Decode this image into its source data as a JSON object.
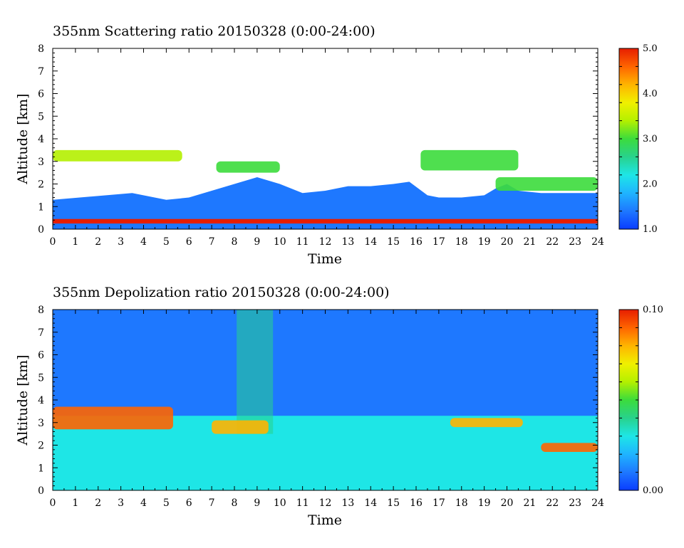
{
  "chart_data": [
    {
      "type": "heatmap",
      "title": "355nm Scattering ratio  20150328 (0:00-24:00)",
      "xlabel": "Time",
      "ylabel": "Altitude [km]",
      "xlim": [
        0,
        24
      ],
      "ylim": [
        0,
        8
      ],
      "x_ticks": [
        "0",
        "1",
        "2",
        "3",
        "4",
        "5",
        "6",
        "7",
        "8",
        "9",
        "10",
        "11",
        "12",
        "13",
        "14",
        "15",
        "16",
        "17",
        "18",
        "19",
        "20",
        "21",
        "22",
        "23",
        "24"
      ],
      "y_ticks": [
        "0",
        "1",
        "2",
        "3",
        "4",
        "5",
        "6",
        "7",
        "8"
      ],
      "colorbar": {
        "min": 1.0,
        "max": 5.0,
        "labels": [
          "1.0",
          "2.0",
          "3.0",
          "4.0",
          "5.0"
        ]
      },
      "colormap": [
        "#0a3cff",
        "#1e78ff",
        "#1fb4ff",
        "#1ee6e6",
        "#28d28c",
        "#3cdc3c",
        "#b4f000",
        "#f0f000",
        "#ffb400",
        "#ff6400",
        "#e61e00"
      ],
      "features": [
        {
          "kind": "boundary_layer",
          "time_start": 0,
          "time_end": 24,
          "top_km_profile": [
            [
              0,
              1.3
            ],
            [
              3.5,
              1.6
            ],
            [
              5,
              1.3
            ],
            [
              6,
              1.4
            ],
            [
              7,
              1.7
            ],
            [
              8,
              2.0
            ],
            [
              9,
              2.3
            ],
            [
              10,
              2.0
            ],
            [
              11,
              1.6
            ],
            [
              12,
              1.7
            ],
            [
              13,
              1.9
            ],
            [
              14,
              1.9
            ],
            [
              15,
              2.0
            ],
            [
              15.7,
              2.1
            ],
            [
              16.5,
              1.5
            ],
            [
              17,
              1.4
            ],
            [
              18,
              1.4
            ],
            [
              19,
              1.5
            ],
            [
              19.5,
              1.8
            ],
            [
              20,
              2.0
            ],
            [
              20.5,
              1.7
            ],
            [
              21.5,
              1.6
            ],
            [
              24,
              1.6
            ]
          ],
          "value": 1.4
        },
        {
          "kind": "surface_layer",
          "time_start": 0,
          "time_end": 24,
          "bottom_km": 0.25,
          "top_km": 0.45,
          "value": 4.8
        },
        {
          "kind": "cloud",
          "time_start": 0,
          "time_end": 5.7,
          "bottom_km": 3.0,
          "top_km": 3.5,
          "value": 3.2
        },
        {
          "kind": "cloud",
          "time_start": 7.2,
          "time_end": 10,
          "bottom_km": 2.5,
          "top_km": 3.0,
          "value": 3.0
        },
        {
          "kind": "cloud",
          "time_start": 16.2,
          "time_end": 20.5,
          "bottom_km": 2.6,
          "top_km": 3.5,
          "value": 3.0
        },
        {
          "kind": "cloud",
          "time_start": 19.5,
          "time_end": 24,
          "bottom_km": 1.7,
          "top_km": 2.3,
          "value": 2.8
        }
      ]
    },
    {
      "type": "heatmap",
      "title": "355nm Depolization ratio  20150328 (0:00-24:00)",
      "xlabel": "Time",
      "ylabel": "Altitude [km]",
      "xlim": [
        0,
        24
      ],
      "ylim": [
        0,
        8
      ],
      "x_ticks": [
        "0",
        "1",
        "2",
        "3",
        "4",
        "5",
        "6",
        "7",
        "8",
        "9",
        "10",
        "11",
        "12",
        "13",
        "14",
        "15",
        "16",
        "17",
        "18",
        "19",
        "20",
        "21",
        "22",
        "23",
        "24"
      ],
      "y_ticks": [
        "0",
        "1",
        "2",
        "3",
        "4",
        "5",
        "6",
        "7",
        "8"
      ],
      "colorbar": {
        "min": 0.0,
        "max": 0.1,
        "labels": [
          "0.00",
          "0.10"
        ]
      },
      "colormap": [
        "#0a3cff",
        "#1e78ff",
        "#1fb4ff",
        "#1ee6e6",
        "#28d28c",
        "#3cdc3c",
        "#b4f000",
        "#f0f000",
        "#ffb400",
        "#ff6400",
        "#e61e00"
      ],
      "features": [
        {
          "kind": "background",
          "time_start": 0,
          "time_end": 24,
          "bottom_km": 3.0,
          "top_km": 8.0,
          "value": 0.01
        },
        {
          "kind": "lower_layer",
          "time_start": 0,
          "time_end": 24,
          "bottom_km": 0.0,
          "top_km": 3.3,
          "value": 0.03
        },
        {
          "kind": "noise_band",
          "time_start": 8.1,
          "time_end": 9.7,
          "bottom_km": 2.5,
          "top_km": 8.0,
          "value": 0.04
        },
        {
          "kind": "cloud",
          "time_start": 0,
          "time_end": 5.3,
          "bottom_km": 2.7,
          "top_km": 3.7,
          "value": 0.09
        },
        {
          "kind": "cloud",
          "time_start": 7.0,
          "time_end": 9.5,
          "bottom_km": 2.5,
          "top_km": 3.1,
          "value": 0.08
        },
        {
          "kind": "cloud",
          "time_start": 17.5,
          "time_end": 20.7,
          "bottom_km": 2.8,
          "top_km": 3.2,
          "value": 0.08
        },
        {
          "kind": "cloud",
          "time_start": 21.5,
          "time_end": 24,
          "bottom_km": 1.7,
          "top_km": 2.1,
          "value": 0.09
        }
      ]
    }
  ]
}
